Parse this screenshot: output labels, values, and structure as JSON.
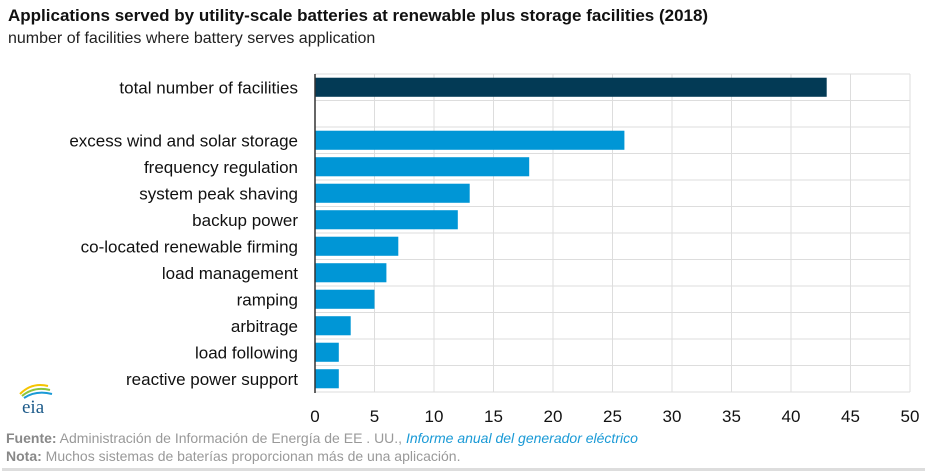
{
  "chart_data": {
    "type": "bar",
    "orientation": "horizontal",
    "title": "Applications served by utility-scale batteries at renewable plus storage facilities (2018)",
    "subtitle": "number of facilities where battery serves application",
    "categories": [
      "total number of facilities",
      "",
      "excess wind and solar storage",
      "frequency regulation",
      "system peak shaving",
      "backup power",
      "co-located renewable firming",
      "load management",
      "ramping",
      "arbitrage",
      "load following",
      "reactive power support"
    ],
    "values": [
      43,
      null,
      26,
      18,
      13,
      12,
      7,
      6,
      5,
      3,
      2,
      2
    ],
    "colors": [
      "#033a55",
      null,
      "#0096d6",
      "#0096d6",
      "#0096d6",
      "#0096d6",
      "#0096d6",
      "#0096d6",
      "#0096d6",
      "#0096d6",
      "#0096d6",
      "#0096d6"
    ],
    "xlim": [
      0,
      50
    ],
    "xticks": [
      "0",
      "5",
      "10",
      "15",
      "20",
      "25",
      "30",
      "35",
      "40",
      "45",
      "50"
    ],
    "grid": true,
    "xlabel": "",
    "ylabel": ""
  },
  "footer": {
    "source_label": "Fuente:",
    "source_text": " Administración de Información de Energía de EE . UU., ",
    "source_link": "Informe anual del generador eléctrico",
    "note_label": "Nota:",
    "note_text": " Muchos sistemas de baterías proporcionan más de una aplicación."
  },
  "logo": "eia"
}
